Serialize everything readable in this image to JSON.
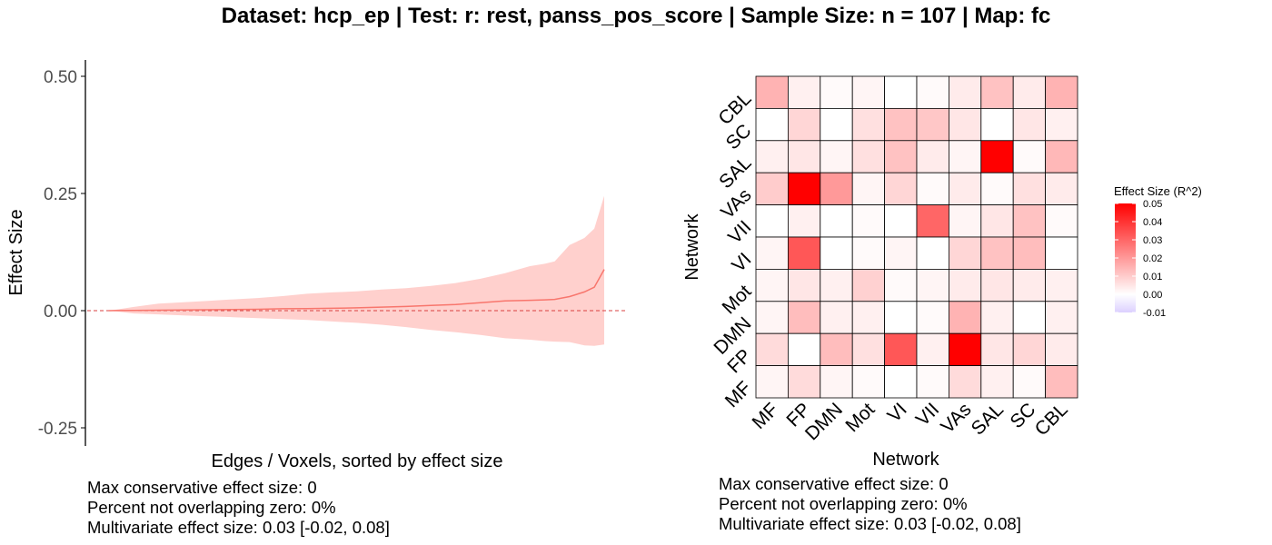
{
  "title": "Dataset: hcp_ep   |  Test: r: rest, panss_pos_score   |   Sample Size: n = 107   |  Map: fc",
  "chart_data": [
    {
      "type": "line",
      "xlabel": "Edges / Voxels, sorted by effect size",
      "ylabel": "Effect Size",
      "ylim": [
        -0.28,
        0.54
      ],
      "yticks": [
        "0.50",
        "0.25",
        "0.00",
        "-0.25"
      ],
      "ytick_values": [
        0.5,
        0.25,
        0.0,
        -0.25
      ],
      "reference_line": 0,
      "x": [
        0,
        0.05,
        0.1,
        0.15,
        0.2,
        0.25,
        0.3,
        0.35,
        0.4,
        0.45,
        0.5,
        0.55,
        0.6,
        0.65,
        0.7,
        0.75,
        0.8,
        0.85,
        0.88,
        0.9,
        0.93,
        0.96,
        0.98,
        1.0
      ],
      "y": [
        0,
        0.0005,
        0.001,
        0.0015,
        0.002,
        0.0025,
        0.003,
        0.004,
        0.0045,
        0.005,
        0.006,
        0.0075,
        0.009,
        0.011,
        0.013,
        0.017,
        0.021,
        0.022,
        0.023,
        0.024,
        0.03,
        0.04,
        0.05,
        0.088
      ],
      "upper": [
        0,
        0.008,
        0.015,
        0.018,
        0.021,
        0.024,
        0.027,
        0.031,
        0.036,
        0.039,
        0.041,
        0.045,
        0.048,
        0.053,
        0.059,
        0.068,
        0.08,
        0.095,
        0.1,
        0.105,
        0.14,
        0.155,
        0.175,
        0.245
      ],
      "lower": [
        0,
        -0.006,
        -0.008,
        -0.01,
        -0.012,
        -0.014,
        -0.016,
        -0.018,
        -0.02,
        -0.023,
        -0.026,
        -0.03,
        -0.035,
        -0.041,
        -0.046,
        -0.052,
        -0.059,
        -0.062,
        -0.065,
        -0.066,
        -0.067,
        -0.074,
        -0.075,
        -0.072
      ],
      "line_color": "#f8766d",
      "band_color": "#ffd0cd",
      "ref_color": "#d94040"
    },
    {
      "type": "heatmap",
      "xlabel": "Network",
      "ylabel": "Network",
      "categories": [
        "MF",
        "FP",
        "DMN",
        "Mot",
        "VI",
        "VII",
        "VAs",
        "SAL",
        "SC",
        "CBL"
      ],
      "rows": [
        "CBL",
        "SC",
        "SAL",
        "VAs",
        "VII",
        "VI",
        "Mot",
        "DMN",
        "FP",
        "MF"
      ],
      "values": [
        [
          0.015,
          0.003,
          0.001,
          0.002,
          0.0,
          0.001,
          0.004,
          0.012,
          0.004,
          0.015
        ],
        [
          0.0,
          0.008,
          0.0,
          0.006,
          0.012,
          0.011,
          0.005,
          0.0,
          0.005,
          0.003
        ],
        [
          0.003,
          0.005,
          0.002,
          0.006,
          0.012,
          0.004,
          0.002,
          0.05,
          0.001,
          0.014
        ],
        [
          0.01,
          0.05,
          0.02,
          0.002,
          0.008,
          0.001,
          0.004,
          0.001,
          0.006,
          0.004
        ],
        [
          0.0,
          0.003,
          0.0,
          0.001,
          0.0,
          0.03,
          0.002,
          0.005,
          0.012,
          0.001
        ],
        [
          0.002,
          0.033,
          0.0,
          0.001,
          0.002,
          0.0,
          0.008,
          0.012,
          0.013,
          0.0
        ],
        [
          0.002,
          0.005,
          0.003,
          0.009,
          0.001,
          0.002,
          0.004,
          0.005,
          0.004,
          0.003
        ],
        [
          0.002,
          0.013,
          0.003,
          0.003,
          0.0,
          0.001,
          0.015,
          0.003,
          0.0,
          0.003
        ],
        [
          0.007,
          0.0,
          0.013,
          0.006,
          0.033,
          0.003,
          0.05,
          0.005,
          0.008,
          0.004
        ],
        [
          0.002,
          0.007,
          0.002,
          0.001,
          0.0,
          0.001,
          0.007,
          0.003,
          0.001,
          0.013
        ]
      ],
      "legend": {
        "title": "Effect Size (R^2)",
        "ticks": [
          "0.05",
          "0.04",
          "0.03",
          "0.02",
          "0.01",
          "0.00",
          "-0.01"
        ],
        "tick_values": [
          0.05,
          0.04,
          0.03,
          0.02,
          0.01,
          0.0,
          -0.01
        ],
        "range": [
          -0.01,
          0.05
        ]
      },
      "colors": {
        "high": "#ff0000",
        "zero": "#ffffff",
        "low": "#dcd0ff"
      }
    }
  ],
  "notes_left": {
    "line1": "Max conservative effect size: 0",
    "line2": "Percent not overlapping zero: 0%",
    "line3": "Multivariate effect size: 0.03 [-0.02, 0.08]"
  },
  "notes_right": {
    "line1": "Max conservative effect size: 0",
    "line2": "Percent not overlapping zero: 0%",
    "line3": "Multivariate effect size: 0.03 [-0.02, 0.08]"
  }
}
